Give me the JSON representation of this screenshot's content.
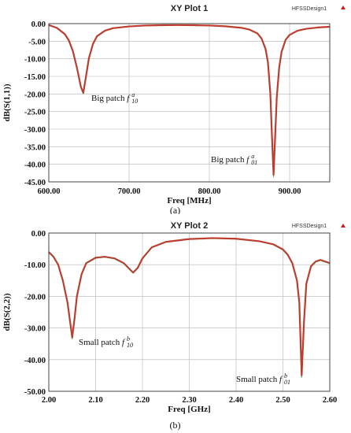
{
  "chart_data": [
    {
      "type": "line",
      "title": "XY Plot 1",
      "design_label": "HFSSDesign1",
      "xlabel": "Freq [MHz]",
      "ylabel": "dB(S(1,1))",
      "xlim": [
        600,
        950
      ],
      "ylim": [
        -45,
        0
      ],
      "x_ticks": [
        "600.00",
        "700.00",
        "800.00",
        "900.00"
      ],
      "x_tick_values": [
        600,
        700,
        800,
        900
      ],
      "y_ticks": [
        "0.00",
        "-5.00",
        "-10.00",
        "-15.00",
        "-20.00",
        "-25.00",
        "-30.00",
        "-35.00",
        "-40.00",
        "-45.00"
      ],
      "y_tick_values": [
        0,
        -5,
        -10,
        -15,
        -20,
        -25,
        -30,
        -35,
        -40,
        -45
      ],
      "grid": true,
      "annotations": [
        {
          "text": "Big patch ",
          "symbol": "f",
          "sup": "a",
          "sub": "10"
        },
        {
          "text": "Big patch ",
          "symbol": "f",
          "sup": "a",
          "sub": "01"
        }
      ],
      "caption": "(a)",
      "colors": [
        "#c0392b",
        "#8e44ad",
        "#2e86c1",
        "#27ae60",
        "#d4ac0d"
      ],
      "x": [
        600,
        610,
        620,
        625,
        630,
        635,
        640,
        643,
        646,
        650,
        655,
        660,
        670,
        680,
        700,
        720,
        740,
        760,
        780,
        800,
        820,
        840,
        850,
        860,
        865,
        870,
        873,
        876,
        878,
        880,
        882,
        884,
        887,
        890,
        895,
        900,
        910,
        920,
        935,
        950
      ],
      "values": [
        -0.4,
        -1.2,
        -3.0,
        -4.8,
        -7.8,
        -12.5,
        -18.0,
        -19.7,
        -15.5,
        -9.8,
        -5.8,
        -3.6,
        -2.0,
        -1.3,
        -0.8,
        -0.55,
        -0.45,
        -0.4,
        -0.45,
        -0.55,
        -0.75,
        -1.2,
        -1.7,
        -2.8,
        -4.2,
        -7.2,
        -11.0,
        -20.0,
        -32.0,
        -43.0,
        -32.0,
        -21.0,
        -12.5,
        -8.0,
        -4.6,
        -3.2,
        -2.0,
        -1.5,
        -1.1,
        -0.9
      ]
    },
    {
      "type": "line",
      "title": "XY Plot 2",
      "design_label": "HFSSDesign1",
      "xlabel": "Freq [GHz]",
      "ylabel": "dB(S(2,2))",
      "xlim": [
        2.0,
        2.6
      ],
      "ylim": [
        -50,
        0
      ],
      "x_ticks": [
        "2.00",
        "2.10",
        "2.20",
        "2.30",
        "2.40",
        "2.50",
        "2.60"
      ],
      "x_tick_values": [
        2.0,
        2.1,
        2.2,
        2.3,
        2.4,
        2.5,
        2.6
      ],
      "y_ticks": [
        "0.00",
        "-10.00",
        "-20.00",
        "-30.00",
        "-40.00",
        "-50.00"
      ],
      "y_tick_values": [
        0,
        -10,
        -20,
        -30,
        -40,
        -50
      ],
      "grid": true,
      "annotations": [
        {
          "text": "Small patch ",
          "symbol": "f",
          "sup": "b",
          "sub": "10"
        },
        {
          "text": "Small patch ",
          "symbol": "f",
          "sup": "b",
          "sub": "01"
        }
      ],
      "caption": "(b)",
      "colors": [
        "#c0392b",
        "#8e44ad",
        "#2e86c1",
        "#27ae60",
        "#d4ac0d"
      ],
      "x": [
        2.0,
        2.01,
        2.02,
        2.03,
        2.04,
        2.045,
        2.05,
        2.055,
        2.06,
        2.07,
        2.08,
        2.1,
        2.12,
        2.14,
        2.16,
        2.17,
        2.18,
        2.19,
        2.2,
        2.22,
        2.25,
        2.3,
        2.35,
        2.4,
        2.45,
        2.48,
        2.5,
        2.51,
        2.52,
        2.53,
        2.535,
        2.54,
        2.545,
        2.55,
        2.56,
        2.57,
        2.58,
        2.6
      ],
      "values": [
        -6.0,
        -7.5,
        -10.0,
        -15.0,
        -22.0,
        -27.5,
        -33.0,
        -27.0,
        -20.0,
        -13.0,
        -9.5,
        -7.8,
        -7.5,
        -8.0,
        -9.5,
        -11.0,
        -12.5,
        -11.0,
        -8.0,
        -4.5,
        -2.8,
        -1.9,
        -1.6,
        -1.8,
        -2.6,
        -3.6,
        -5.2,
        -6.8,
        -9.5,
        -15.0,
        -22.0,
        -45.0,
        -28.0,
        -16.0,
        -10.5,
        -9.0,
        -8.5,
        -9.5
      ]
    }
  ]
}
